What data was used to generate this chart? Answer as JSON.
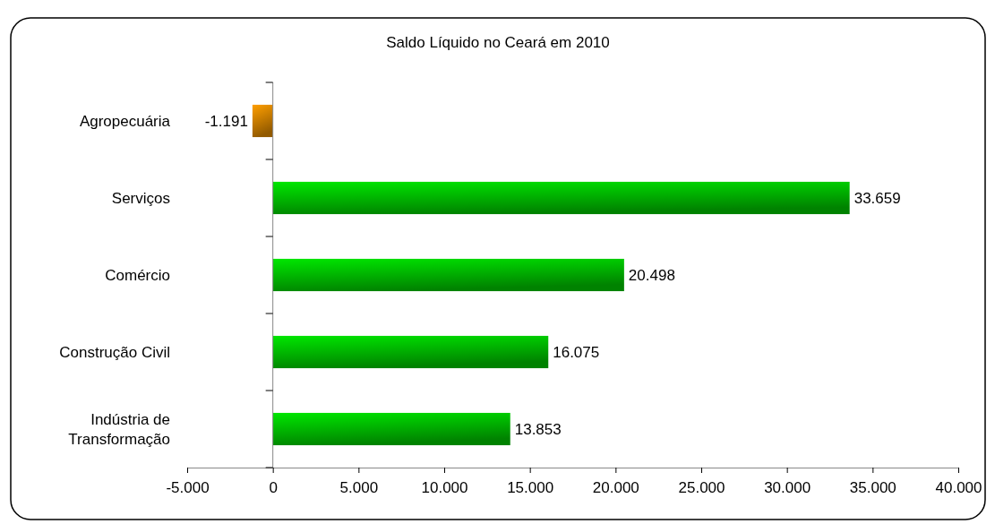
{
  "chart_data": {
    "type": "bar",
    "orientation": "horizontal",
    "title": "Saldo Líquido no Ceará em 2010",
    "categories": [
      "Agropecuária",
      "Serviços",
      "Comércio",
      "Construção Civil",
      "Indústria de Transformação"
    ],
    "values": [
      -1191,
      33659,
      20498,
      16075,
      13853
    ],
    "colors": [
      "#e08a00",
      "#00c800",
      "#00c800",
      "#00c800",
      "#00c800"
    ],
    "value_labels": [
      "-1.191",
      "33.659",
      "20.498",
      "16.075",
      "13.853"
    ],
    "xlim": [
      -5000,
      40000
    ],
    "xticks": [
      {
        "value": -5000,
        "label": "-5.000"
      },
      {
        "value": 0,
        "label": "0"
      },
      {
        "value": 5000,
        "label": "5.000"
      },
      {
        "value": 10000,
        "label": "10.000"
      },
      {
        "value": 15000,
        "label": "15.000"
      },
      {
        "value": 20000,
        "label": "20.000"
      },
      {
        "value": 25000,
        "label": "25.000"
      },
      {
        "value": 30000,
        "label": "30.000"
      },
      {
        "value": 35000,
        "label": "35.000"
      },
      {
        "value": 40000,
        "label": "40.000"
      }
    ]
  }
}
